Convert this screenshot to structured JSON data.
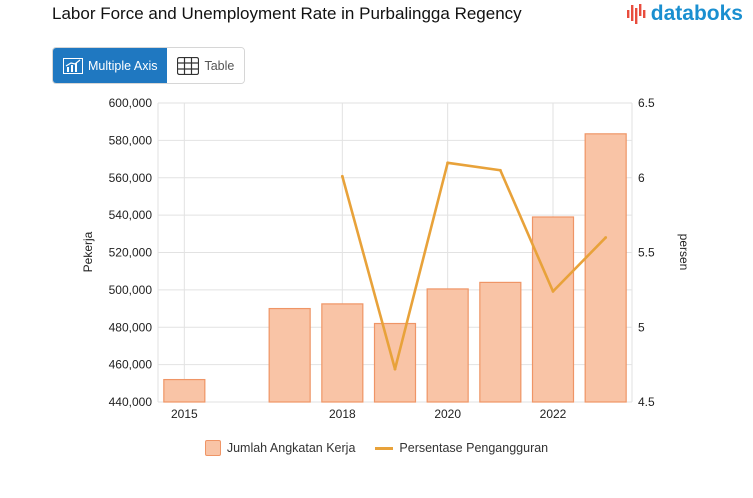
{
  "header": {
    "title": "Labor Force and Unemployment Rate in Purbalingga Regency",
    "logo_text": "databoks"
  },
  "toggle": {
    "multiple_axis_label": "Multiple Axis",
    "table_label": "Table"
  },
  "colors": {
    "bar_fill": "#f9c4a6",
    "bar_stroke": "#ef9566",
    "line": "#e8a23a",
    "accent": "#1f78c1"
  },
  "chart_data": {
    "type": "bar",
    "x": [
      2015,
      2017,
      2018,
      2019,
      2020,
      2021,
      2022,
      2023
    ],
    "x_tick_labels": [
      "2015",
      "2018",
      "2020",
      "2022"
    ],
    "series": [
      {
        "name": "Jumlah Angkatan Kerja",
        "type": "bar",
        "axis": "left",
        "values": [
          452000,
          490000,
          492500,
          482000,
          500500,
          504000,
          539000,
          583500
        ]
      },
      {
        "name": "Persentase Pengangguran",
        "type": "line",
        "axis": "right",
        "values": [
          null,
          null,
          6.01,
          4.72,
          6.1,
          6.05,
          5.24,
          5.6
        ]
      }
    ],
    "ylabel_left": "Pekerja",
    "ylabel_right": "persen",
    "ylim_left": [
      440000,
      600000
    ],
    "ylim_right": [
      4.5,
      6.5
    ],
    "yticks_left": [
      "440,000",
      "460,000",
      "480,000",
      "500,000",
      "520,000",
      "540,000",
      "560,000",
      "580,000",
      "600,000"
    ],
    "yticks_right": [
      "4.5",
      "5",
      "5.5",
      "6",
      "6.5"
    ],
    "grid": true,
    "legend_position": "bottom"
  }
}
